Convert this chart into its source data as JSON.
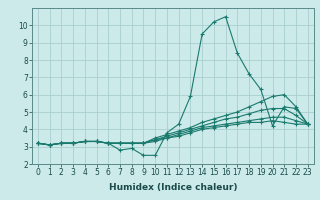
{
  "xlabel": "Humidex (Indice chaleur)",
  "ylabel": "",
  "bg_color": "#cceaea",
  "grid_color": "#aacece",
  "line_color": "#1a7a6e",
  "xlim": [
    -0.5,
    23.5
  ],
  "ylim": [
    2,
    11
  ],
  "xticks": [
    0,
    1,
    2,
    3,
    4,
    5,
    6,
    7,
    8,
    9,
    10,
    11,
    12,
    13,
    14,
    15,
    16,
    17,
    18,
    19,
    20,
    21,
    22,
    23
  ],
  "yticks": [
    2,
    3,
    4,
    5,
    6,
    7,
    8,
    9,
    10
  ],
  "lines": [
    {
      "x": [
        0,
        1,
        2,
        3,
        4,
        5,
        6,
        7,
        8,
        9,
        10,
        11,
        12,
        13,
        14,
        15,
        16,
        17,
        18,
        19,
        20,
        21,
        22,
        23
      ],
      "y": [
        3.2,
        3.1,
        3.2,
        3.2,
        3.3,
        3.3,
        3.2,
        2.8,
        2.9,
        2.5,
        2.5,
        3.8,
        4.3,
        5.9,
        9.5,
        10.2,
        10.5,
        8.4,
        7.2,
        6.3,
        4.2,
        5.3,
        5.2,
        4.3
      ]
    },
    {
      "x": [
        0,
        1,
        2,
        3,
        4,
        5,
        6,
        7,
        8,
        9,
        10,
        11,
        12,
        13,
        14,
        15,
        16,
        17,
        18,
        19,
        20,
        21,
        22,
        23
      ],
      "y": [
        3.2,
        3.1,
        3.2,
        3.2,
        3.3,
        3.3,
        3.2,
        3.2,
        3.2,
        3.2,
        3.5,
        3.7,
        3.9,
        4.1,
        4.4,
        4.6,
        4.8,
        5.0,
        5.3,
        5.6,
        5.9,
        6.0,
        5.3,
        4.3
      ]
    },
    {
      "x": [
        0,
        1,
        2,
        3,
        4,
        5,
        6,
        7,
        8,
        9,
        10,
        11,
        12,
        13,
        14,
        15,
        16,
        17,
        18,
        19,
        20,
        21,
        22,
        23
      ],
      "y": [
        3.2,
        3.1,
        3.2,
        3.2,
        3.3,
        3.3,
        3.2,
        3.2,
        3.2,
        3.2,
        3.4,
        3.6,
        3.8,
        4.0,
        4.2,
        4.4,
        4.6,
        4.7,
        4.9,
        5.1,
        5.2,
        5.2,
        4.8,
        4.3
      ]
    },
    {
      "x": [
        0,
        1,
        2,
        3,
        4,
        5,
        6,
        7,
        8,
        9,
        10,
        11,
        12,
        13,
        14,
        15,
        16,
        17,
        18,
        19,
        20,
        21,
        22,
        23
      ],
      "y": [
        3.2,
        3.1,
        3.2,
        3.2,
        3.3,
        3.3,
        3.2,
        3.2,
        3.2,
        3.2,
        3.4,
        3.5,
        3.7,
        3.9,
        4.1,
        4.2,
        4.3,
        4.4,
        4.5,
        4.6,
        4.7,
        4.7,
        4.5,
        4.3
      ]
    },
    {
      "x": [
        0,
        1,
        2,
        3,
        4,
        5,
        6,
        7,
        8,
        9,
        10,
        11,
        12,
        13,
        14,
        15,
        16,
        17,
        18,
        19,
        20,
        21,
        22,
        23
      ],
      "y": [
        3.2,
        3.1,
        3.2,
        3.2,
        3.3,
        3.3,
        3.2,
        3.2,
        3.2,
        3.2,
        3.3,
        3.5,
        3.6,
        3.8,
        4.0,
        4.1,
        4.2,
        4.3,
        4.4,
        4.4,
        4.5,
        4.4,
        4.3,
        4.3
      ]
    }
  ],
  "tick_fontsize": 5.5,
  "xlabel_fontsize": 6.5
}
